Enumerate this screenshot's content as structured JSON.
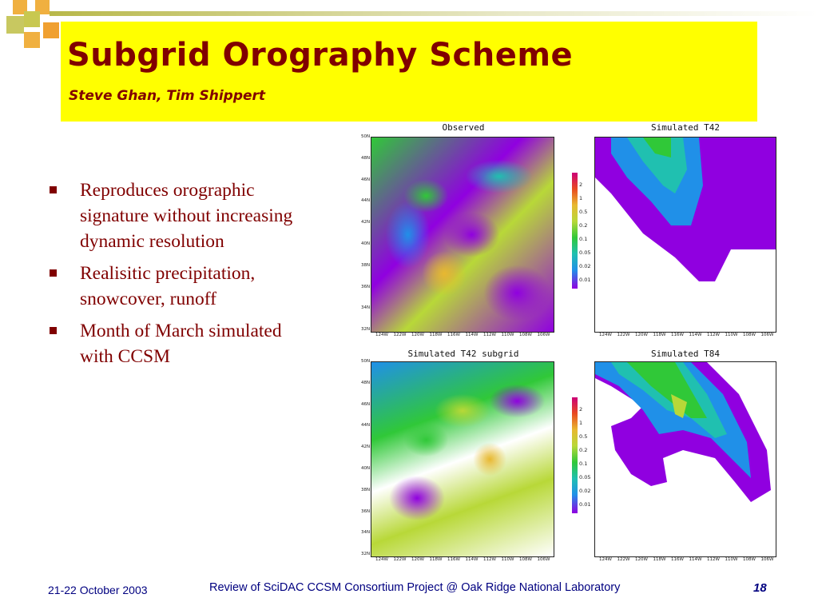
{
  "slide": {
    "title": "Subgrid Orography Scheme",
    "subtitle": "Steve Ghan, Tim Shippert",
    "bullets": [
      "Reproduces orographic signature without increasing dynamic resolution",
      "Realisitic precipitation, snowcover, runoff",
      "Month of March simulated with CCSM"
    ],
    "footer": {
      "date": "21-22 October 2003",
      "center": "Review of SciDAC CCSM Consortium Project @ Oak Ridge National Laboratory",
      "page": "18"
    }
  },
  "figures": {
    "panels": [
      {
        "title": "Observed"
      },
      {
        "title": "Simulated T42"
      },
      {
        "title": "Simulated T42 subgrid"
      },
      {
        "title": "Simulated T84"
      }
    ],
    "lat_labels": [
      "50N",
      "48N",
      "46N",
      "44N",
      "42N",
      "40N",
      "38N",
      "36N",
      "34N",
      "32N"
    ],
    "lon_labels": [
      "124W",
      "122W",
      "120W",
      "118W",
      "116W",
      "114W",
      "112W",
      "110W",
      "108W",
      "106W"
    ],
    "colorbar": {
      "labels": [
        "2",
        "1",
        "0.5",
        "0.2",
        "0.1",
        "0.05",
        "0.02",
        "0.01"
      ],
      "colors": [
        "#cc0077",
        "#e84a20",
        "#e8b830",
        "#b8d838",
        "#30c838",
        "#20c0b0",
        "#2090e8",
        "#9000e0"
      ]
    }
  },
  "colors": {
    "title": "#800000",
    "title_background": "#ffff00",
    "footer_text": "#000080",
    "deco_orange": "#f0a030",
    "deco_olive": "#b8b84a"
  }
}
